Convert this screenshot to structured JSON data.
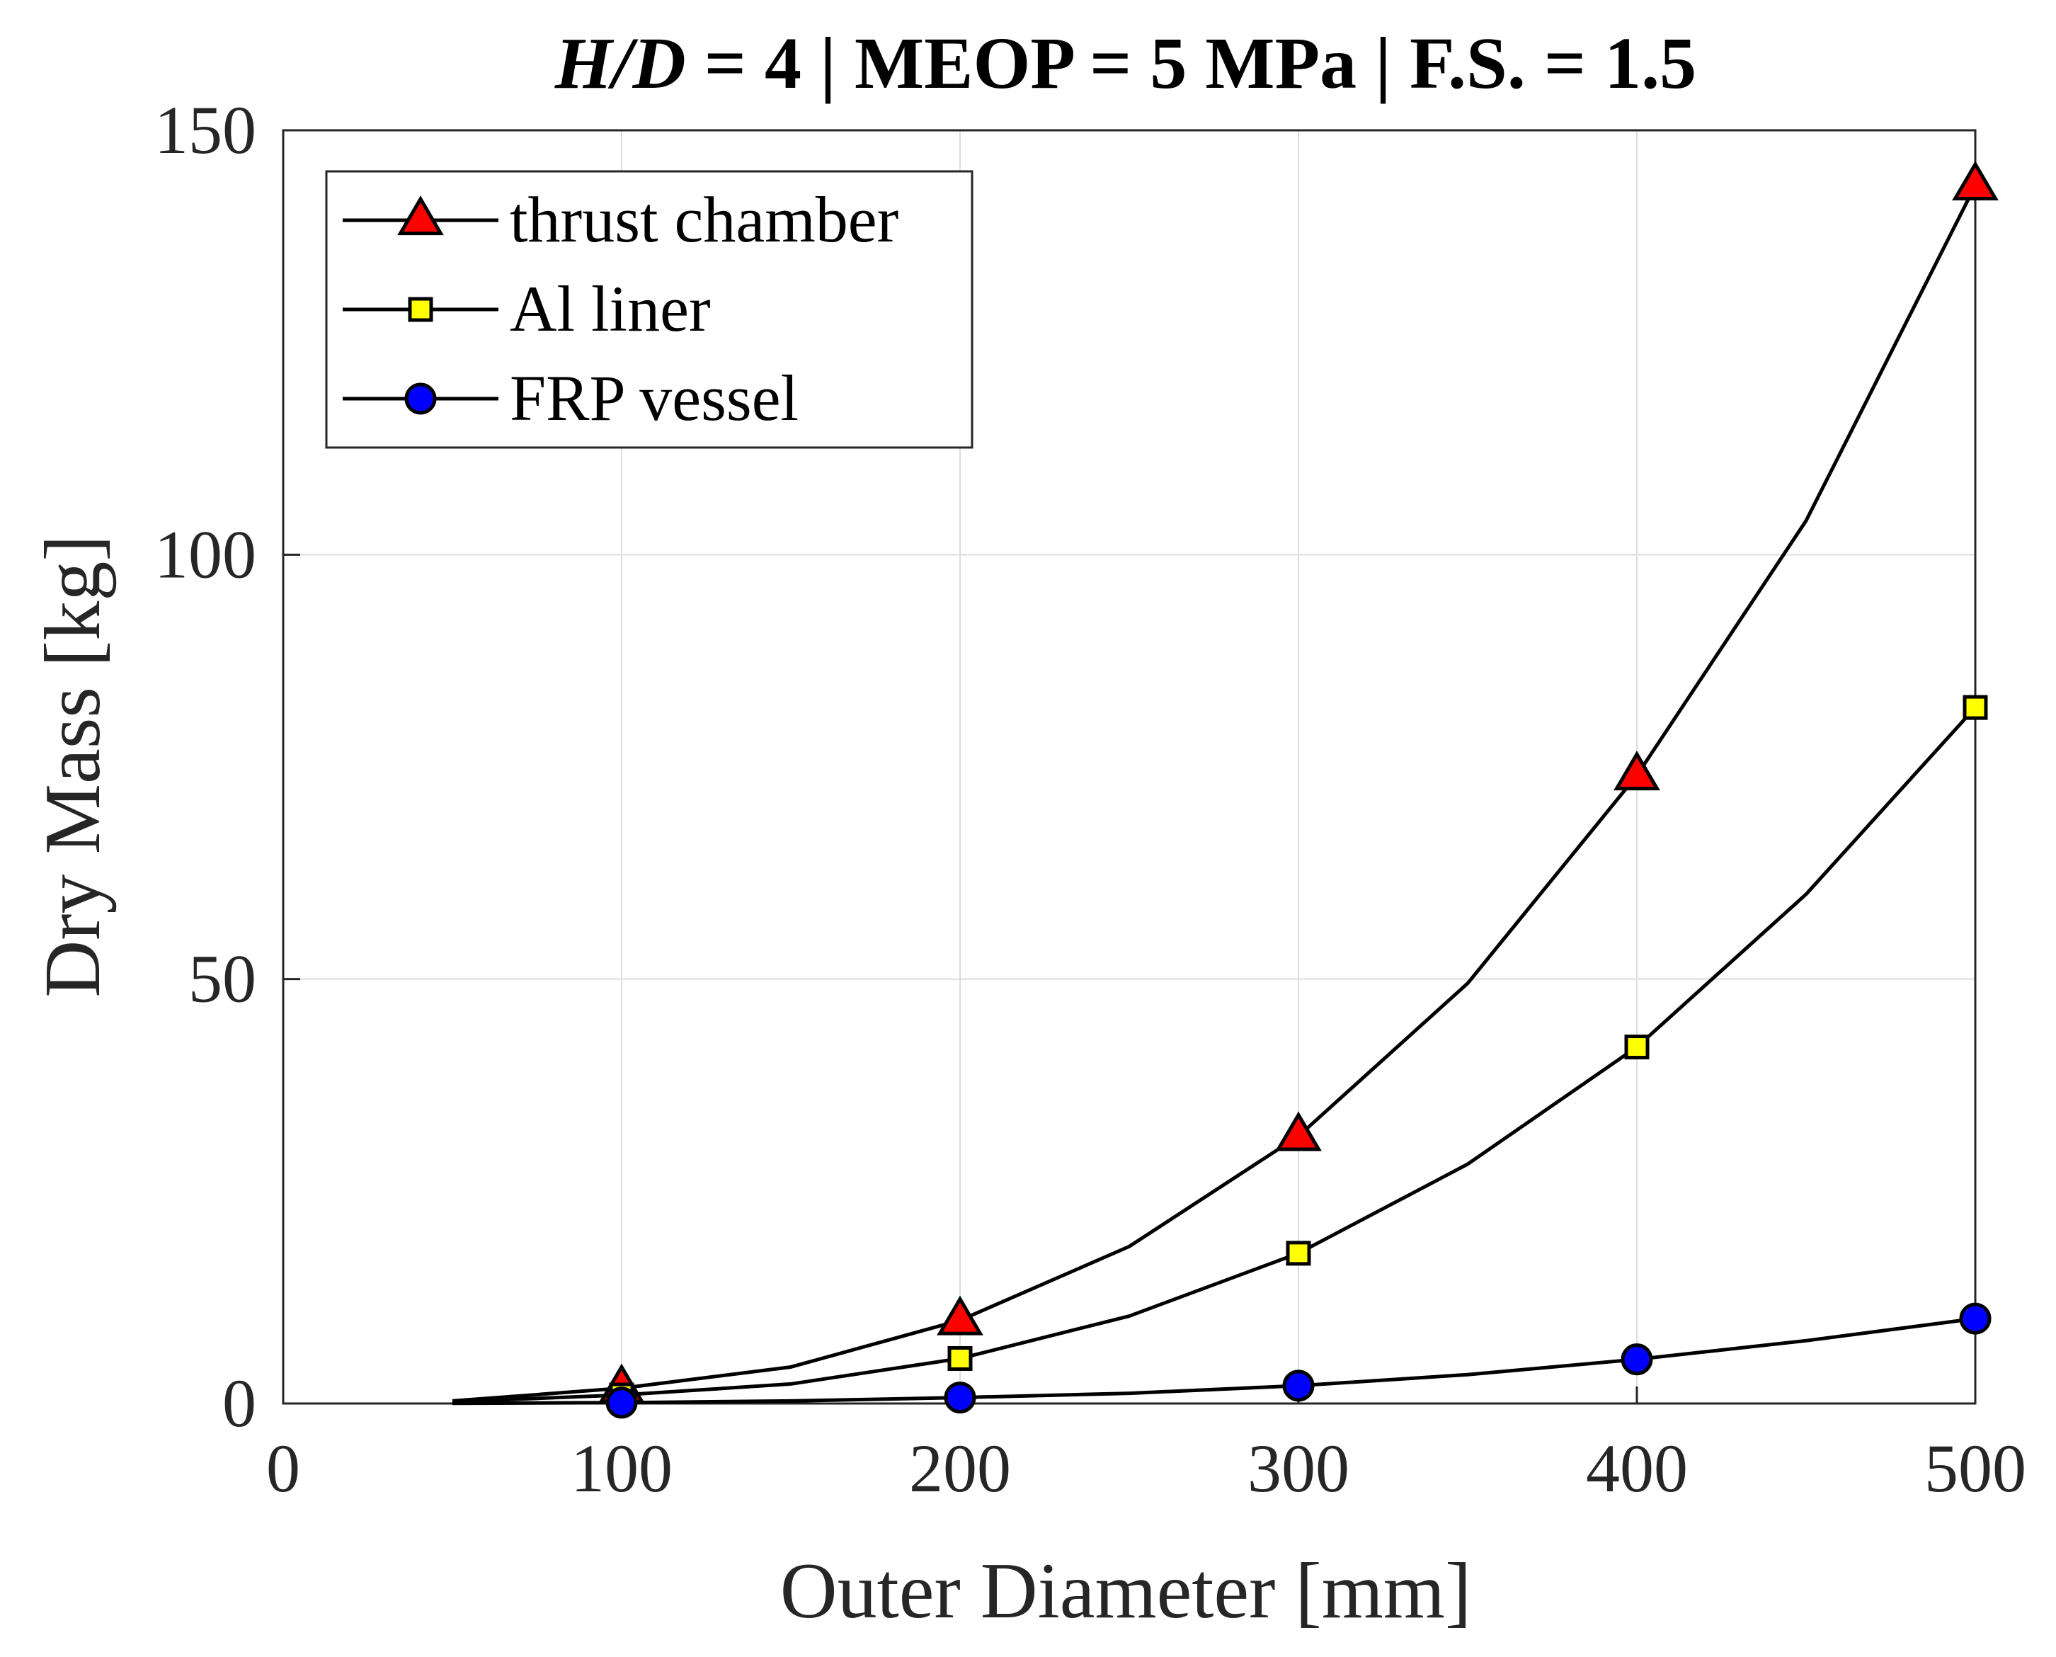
{
  "chart_data": {
    "type": "line",
    "title": "H/D = 4 | MEOP = 5 MPa | F.S. = 1.5",
    "title_parts": {
      "italic": "H/D",
      "rest": " = 4 | MEOP = 5 MPa | F.S. = 1.5"
    },
    "xlabel": "Outer Diameter [mm]",
    "ylabel": "Dry Mass [kg]",
    "xlim": [
      0,
      500
    ],
    "ylim": [
      0,
      150
    ],
    "xticks": [
      0,
      100,
      200,
      300,
      400,
      500
    ],
    "yticks": [
      0,
      50,
      100,
      150
    ],
    "grid": true,
    "legend_position": "top-left",
    "series": [
      {
        "name": "thrust chamber",
        "marker": "triangle",
        "marker_color": "#ff0000",
        "line_color": "#000000",
        "x": [
          50,
          100,
          150,
          200,
          250,
          300,
          350,
          400,
          450,
          500
        ],
        "y": [
          0.3,
          1.8,
          4.3,
          9.8,
          18.5,
          31.5,
          49.5,
          74.0,
          104.0,
          143.5
        ],
        "marker_x": [
          100,
          200,
          300,
          400,
          500
        ],
        "marker_y": [
          1.8,
          9.8,
          31.5,
          74.0,
          143.5
        ]
      },
      {
        "name": "Al liner",
        "marker": "square",
        "marker_color": "#ffff00",
        "line_color": "#000000",
        "x": [
          50,
          100,
          150,
          200,
          250,
          300,
          350,
          400,
          450,
          500
        ],
        "y": [
          0.2,
          1.0,
          2.3,
          5.3,
          10.3,
          17.7,
          28.2,
          42.0,
          60.0,
          82.0
        ],
        "marker_x": [
          100,
          200,
          300,
          400,
          500
        ],
        "marker_y": [
          1.0,
          5.3,
          17.7,
          42.0,
          82.0
        ]
      },
      {
        "name": "FRP vessel",
        "marker": "circle",
        "marker_color": "#0000ff",
        "line_color": "#000000",
        "x": [
          50,
          100,
          150,
          200,
          250,
          300,
          350,
          400,
          450,
          500
        ],
        "y": [
          0.02,
          0.1,
          0.3,
          0.7,
          1.2,
          2.1,
          3.4,
          5.2,
          7.4,
          10.0
        ],
        "marker_x": [
          100,
          200,
          300,
          400,
          500
        ],
        "marker_y": [
          0.1,
          0.7,
          2.1,
          5.2,
          10.0
        ]
      }
    ]
  }
}
